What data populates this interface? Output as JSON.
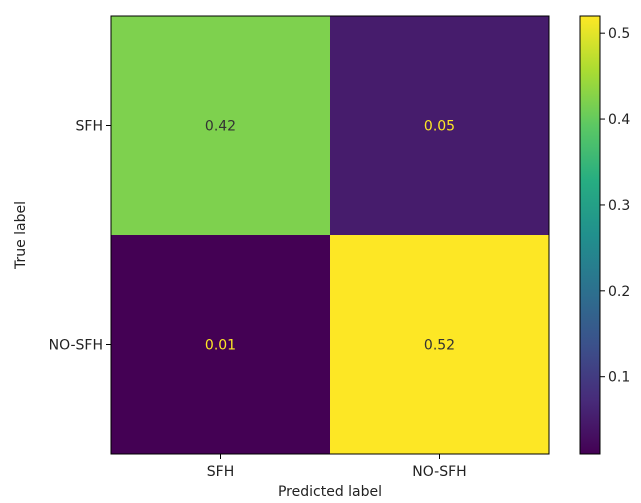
{
  "chart_data": {
    "type": "heatmap",
    "title": "",
    "xlabel": "Predicted label",
    "ylabel": "True label",
    "x_categories": [
      "SFH",
      "NO-SFH"
    ],
    "y_categories": [
      "SFH",
      "NO-SFH"
    ],
    "values": [
      [
        0.42,
        0.05
      ],
      [
        0.01,
        0.52
      ]
    ],
    "value_labels": [
      [
        "0.42",
        "0.05"
      ],
      [
        "0.01",
        "0.52"
      ]
    ],
    "colormap": "viridis",
    "colorbar": {
      "range": [
        0.01,
        0.52
      ],
      "ticks": [
        0.1,
        0.2,
        0.3,
        0.4,
        0.5
      ],
      "tick_labels": [
        "0.1",
        "0.2",
        "0.3",
        "0.4",
        "0.5"
      ]
    },
    "text_color_dark_cells": "#fde725",
    "text_color_light_cells": "#333333"
  }
}
